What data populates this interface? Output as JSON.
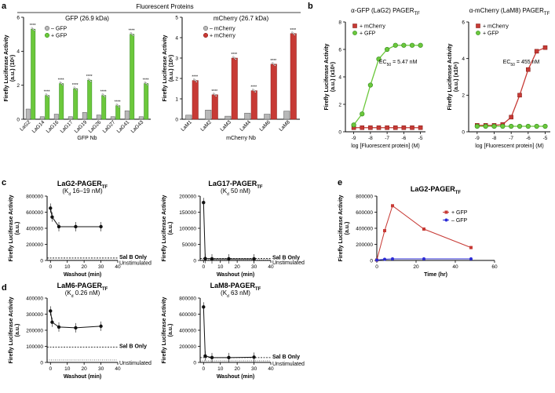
{
  "colors": {
    "green": "#6cc83c",
    "greenEdge": "#2f8a1a",
    "red": "#c73a35",
    "redEdge": "#8a1e1a",
    "grey": "#b8b8b8",
    "greyEdge": "#555555",
    "blue": "#2b2bd6",
    "black": "#111111"
  },
  "panel_labels": {
    "a": "a",
    "b": "b",
    "c": "c",
    "d": "d",
    "e": "e"
  },
  "a_header": "Fluorescent Proteins",
  "chart_data": [
    {
      "id": "a1",
      "type": "bar",
      "title": "GFP (26.9 kDa)",
      "xlabel": "GFP Nb",
      "ylabel": "Firefly Luciferase Activity",
      "ylabel2": "(a.u.) (10⁶)",
      "ylim": [
        0,
        6
      ],
      "yticks": [
        "0",
        "2",
        "4",
        "6"
      ],
      "categories": [
        "LaG2",
        "LaG14",
        "LaG16",
        "LaG17",
        "LaG19",
        "LaG26",
        "LaG27",
        "LaG41",
        "LaG43"
      ],
      "series": [
        {
          "name": "– GFP",
          "values": [
            0.6,
            0.15,
            0.3,
            0.15,
            0.4,
            0.25,
            0.15,
            0.5,
            0.15
          ]
        },
        {
          "name": "+ GFP",
          "values": [
            5.3,
            1.4,
            2.1,
            1.8,
            2.3,
            1.4,
            0.8,
            5.0,
            2.1
          ]
        }
      ],
      "sig": "****"
    },
    {
      "id": "a2",
      "type": "bar",
      "title": "mCherry (26.7 kDa)",
      "xlabel": "mCherry Nb",
      "ylabel": "Firefly Luciferase Activity",
      "ylabel2": "(a.u.) (10⁶)",
      "ylim": [
        0,
        5
      ],
      "yticks": [
        "0",
        "1",
        "2",
        "3",
        "4",
        "5"
      ],
      "categories": [
        "LaM1",
        "LaM2",
        "LaM3",
        "LaM4",
        "LaM6",
        "LaM8"
      ],
      "series": [
        {
          "name": "– mCherry",
          "values": [
            0.2,
            0.45,
            0.15,
            0.3,
            0.25,
            0.4
          ]
        },
        {
          "name": "+ mCherry",
          "values": [
            1.9,
            1.2,
            3.0,
            1.4,
            2.7,
            4.2
          ]
        }
      ],
      "sig": "****"
    },
    {
      "id": "b1",
      "type": "line",
      "title": "α-GFP (LaG2) PAGER",
      "title_sub": "TF",
      "xlabel": "log [Fluorescent protein] (M)",
      "ylabel": "Firefly Luciferase Activity",
      "ylabel2": "(a.u.) (x10⁶)",
      "xlim": [
        -9.5,
        -4.7
      ],
      "ylim": [
        0,
        8
      ],
      "xticks": [
        "-9",
        "-8",
        "-7",
        "-6",
        "-5"
      ],
      "yticks": [
        "0",
        "2",
        "4",
        "6",
        "8"
      ],
      "annotation": "EC",
      "annotation_sub": "50",
      "annotation_val": " = 5.47 nM",
      "series": [
        {
          "name": "+ mCherry",
          "x": [
            -9,
            -8.5,
            -8,
            -7.5,
            -7,
            -6.5,
            -6,
            -5.5,
            -5
          ],
          "y": [
            0.3,
            0.3,
            0.3,
            0.3,
            0.3,
            0.3,
            0.3,
            0.3,
            0.3
          ]
        },
        {
          "name": "+ GFP",
          "x": [
            -9,
            -8.5,
            -8,
            -7.5,
            -7,
            -6.5,
            -6,
            -5.5,
            -5
          ],
          "y": [
            0.5,
            1.3,
            3.4,
            5.3,
            6.0,
            6.3,
            6.3,
            6.3,
            6.3
          ]
        }
      ]
    },
    {
      "id": "b2",
      "type": "line",
      "title": "α-mCherry (LaM8) PAGER",
      "title_sub": "TF",
      "xlabel": "log [Fluorescent protein] (M)",
      "ylabel": "Firefly Luciferase Activity",
      "ylabel2": "(a.u.) (x10⁶)",
      "xlim": [
        -9.5,
        -4.7
      ],
      "ylim": [
        0,
        6
      ],
      "xticks": [
        "-9",
        "-8",
        "-7",
        "-6",
        "-5"
      ],
      "yticks": [
        "0",
        "2",
        "4",
        "6"
      ],
      "annotation": "EC",
      "annotation_sub": "50",
      "annotation_val": " = 455 nM",
      "series": [
        {
          "name": "+ mCherry",
          "x": [
            -9,
            -8.5,
            -8,
            -7.5,
            -7,
            -6.5,
            -6,
            -5.5,
            -5
          ],
          "y": [
            0.35,
            0.35,
            0.35,
            0.4,
            0.8,
            2.0,
            3.4,
            4.4,
            4.6
          ]
        },
        {
          "name": "+ GFP",
          "x": [
            -9,
            -8.5,
            -8,
            -7.5,
            -7,
            -6.5,
            -6,
            -5.5,
            -5
          ],
          "y": [
            0.3,
            0.3,
            0.3,
            0.3,
            0.3,
            0.3,
            0.3,
            0.3,
            0.3
          ]
        }
      ]
    },
    {
      "id": "c1",
      "type": "scatter",
      "title": "LaG2-PAGER",
      "title_sub": "TF",
      "sub": "(K",
      "sub_i": "d",
      "sub_v": " 16–19 nM)",
      "xlabel": "Washout (min)",
      "ylabel": "Firefly Luciferase Activity",
      "ylabel2": "(a.u.)",
      "xlim": [
        -2,
        40
      ],
      "ylim": [
        0,
        800000
      ],
      "xticks": [
        "0",
        "10",
        "20",
        "30",
        "40"
      ],
      "yticks": [
        "0",
        "200000",
        "400000",
        "600000",
        "800000"
      ],
      "x": [
        0,
        1,
        5,
        15,
        30
      ],
      "y": [
        650000,
        540000,
        420000,
        420000,
        420000
      ],
      "salb": 30000,
      "unstim": 5000
    },
    {
      "id": "c2",
      "type": "scatter",
      "title": "LaG17-PAGER",
      "title_sub": "TF",
      "sub": "(K",
      "sub_i": "d",
      "sub_v": " 50 nM)",
      "xlabel": "Washout (min)",
      "ylabel": "Firefly Luciferase Activity",
      "ylabel2": "(a.u.)",
      "xlim": [
        -2,
        40
      ],
      "ylim": [
        0,
        200000
      ],
      "xticks": [
        "0",
        "10",
        "20",
        "30",
        "40"
      ],
      "yticks": [
        "0",
        "50000",
        "100000",
        "150000",
        "200000"
      ],
      "x": [
        0,
        1,
        5,
        15,
        30
      ],
      "y": [
        180000,
        6000,
        5000,
        5000,
        5000
      ],
      "salb": 6000,
      "unstim": 2000
    },
    {
      "id": "d1",
      "type": "scatter",
      "title": "LaM6-PAGER",
      "title_sub": "TF",
      "sub": "(K",
      "sub_i": "d",
      "sub_v": " 0.26 nM)",
      "xlabel": "Washout (min)",
      "ylabel": "Firefly Luciferase Activity",
      "ylabel2": "(a.u.)",
      "xlim": [
        -2,
        40
      ],
      "ylim": [
        0,
        400000
      ],
      "xticks": [
        "0",
        "10",
        "20",
        "30",
        "40"
      ],
      "yticks": [
        "0",
        "100000",
        "200000",
        "300000",
        "400000"
      ],
      "x": [
        0,
        1,
        5,
        15,
        30
      ],
      "y": [
        320000,
        250000,
        220000,
        215000,
        225000
      ],
      "salb": 95000,
      "unstim": 15000
    },
    {
      "id": "d2",
      "type": "scatter",
      "title": "LaM8-PAGER",
      "title_sub": "TF",
      "sub": "(K",
      "sub_i": "d",
      "sub_v": " 63 nM)",
      "xlabel": "Washout (min)",
      "ylabel": "Firefly Luciferase Activity",
      "ylabel2": "(a.u.)",
      "xlim": [
        -2,
        40
      ],
      "ylim": [
        0,
        800000
      ],
      "xticks": [
        "0",
        "10",
        "20",
        "30",
        "40"
      ],
      "yticks": [
        "0",
        "200000",
        "400000",
        "600000",
        "800000"
      ],
      "x": [
        0,
        1,
        5,
        15,
        30
      ],
      "y": [
        690000,
        80000,
        60000,
        60000,
        65000
      ],
      "salb": 60000,
      "unstim": 20000
    },
    {
      "id": "e1",
      "type": "line",
      "title": "LaG2-PAGER",
      "title_sub": "TF",
      "xlabel": "Time (hr)",
      "ylabel": "Firefly Luciferase Activity",
      "ylabel2": "(a.u.)",
      "xlim": [
        0,
        60
      ],
      "ylim": [
        0,
        800000
      ],
      "xticks": [
        "0",
        "20",
        "40",
        "60"
      ],
      "yticks": [
        "0",
        "200000",
        "400000",
        "600000",
        "800000"
      ],
      "series": [
        {
          "name": "+ GFP",
          "x": [
            0,
            4,
            8,
            24,
            48
          ],
          "y": [
            5000,
            370000,
            680000,
            390000,
            160000
          ]
        },
        {
          "name": "– GFP",
          "x": [
            0,
            4,
            8,
            24,
            48
          ],
          "y": [
            5000,
            15000,
            20000,
            20000,
            20000
          ]
        }
      ]
    }
  ],
  "refs": {
    "salb": "Sal B Only",
    "unstim": "Unstimulated"
  }
}
